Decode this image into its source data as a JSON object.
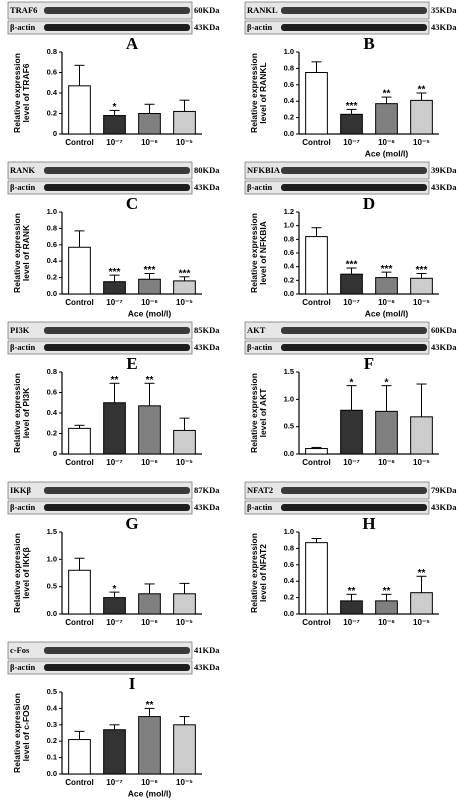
{
  "chart_data": [
    {
      "type": "bar",
      "panel": "A",
      "protein": "TRAF6",
      "protein_kda": "60KDa",
      "control_label": "β-actin",
      "control_kda": "43KDa",
      "ylabel": "Relative expression level of TRAF6",
      "categories": [
        "Control",
        "10⁻⁷",
        "10⁻⁶",
        "10⁻⁵"
      ],
      "values": [
        0.47,
        0.18,
        0.2,
        0.22
      ],
      "errors": [
        0.2,
        0.05,
        0.09,
        0.11
      ],
      "annotations": [
        null,
        "*",
        null,
        null
      ],
      "colors": [
        "#ffffff",
        "#333333",
        "#808080",
        "#cccccc"
      ],
      "ylim": [
        0,
        0.8
      ],
      "yticks": [
        0,
        0.2,
        0.4,
        0.6,
        0.8
      ]
    },
    {
      "type": "bar",
      "panel": "B",
      "protein": "RANKL",
      "protein_kda": "35KDa",
      "control_label": "β-actin",
      "control_kda": "43KDa",
      "ylabel": "Relative expression level of RANKL",
      "xlabel": "Ace (mol/l)",
      "categories": [
        "Control",
        "10⁻⁷",
        "10⁻⁶",
        "10⁻⁵"
      ],
      "values": [
        0.75,
        0.24,
        0.37,
        0.41
      ],
      "errors": [
        0.13,
        0.06,
        0.08,
        0.09
      ],
      "annotations": [
        null,
        "***",
        "**",
        "**"
      ],
      "colors": [
        "#ffffff",
        "#333333",
        "#808080",
        "#cccccc"
      ],
      "ylim": [
        0,
        1
      ],
      "yticks": [
        {
          "value": 0,
          "label": "0.0"
        },
        0.2,
        0.4,
        0.6,
        0.8,
        {
          "value": 1,
          "label": "1.0"
        }
      ]
    },
    {
      "type": "bar",
      "panel": "C",
      "protein": "RANK",
      "protein_kda": "80KDa",
      "control_label": "β-actin",
      "control_kda": "43KDa",
      "ylabel": "Relative expression level of RANK",
      "xlabel": "Ace (mol/l)",
      "categories": [
        "Control",
        "10⁻⁷",
        "10⁻⁶",
        "10⁻⁵"
      ],
      "values": [
        0.57,
        0.15,
        0.18,
        0.16
      ],
      "errors": [
        0.2,
        0.08,
        0.07,
        0.05
      ],
      "annotations": [
        null,
        "***",
        "***",
        "***"
      ],
      "colors": [
        "#ffffff",
        "#333333",
        "#808080",
        "#cccccc"
      ],
      "ylim": [
        0,
        1
      ],
      "yticks": [
        {
          "value": 0,
          "label": "0.0"
        },
        0.2,
        0.4,
        0.6,
        0.8,
        {
          "value": 1,
          "label": "1.0"
        }
      ]
    },
    {
      "type": "bar",
      "panel": "D",
      "protein": "NFKBIA",
      "protein_kda": "39KDa",
      "control_label": "β-actin",
      "control_kda": "43KDa",
      "ylabel": "Relative expression level of NFKBIA",
      "xlabel": "Ace (mol/l)",
      "categories": [
        "Control",
        "10⁻⁷",
        "10⁻⁶",
        "10⁻⁵"
      ],
      "values": [
        0.84,
        0.29,
        0.24,
        0.23
      ],
      "errors": [
        0.13,
        0.09,
        0.08,
        0.07
      ],
      "annotations": [
        null,
        "***",
        "***",
        "***"
      ],
      "colors": [
        "#ffffff",
        "#333333",
        "#808080",
        "#cccccc"
      ],
      "ylim": [
        0,
        1.2
      ],
      "yticks": [
        {
          "value": 0,
          "label": "0.0"
        },
        0.2,
        0.4,
        0.6,
        0.8,
        {
          "value": 1,
          "label": "1.0"
        },
        1.2
      ]
    },
    {
      "type": "bar",
      "panel": "E",
      "protein": "PI3K",
      "protein_kda": "85KDa",
      "control_label": "β-actin",
      "control_kda": "43KDa",
      "ylabel": "Relative expression level of PI3K",
      "categories": [
        "Control",
        "10⁻⁷",
        "10⁻⁶",
        "10⁻⁵"
      ],
      "values": [
        0.25,
        0.5,
        0.47,
        0.23
      ],
      "errors": [
        0.03,
        0.19,
        0.22,
        0.12
      ],
      "annotations": [
        null,
        "**",
        "**",
        null
      ],
      "colors": [
        "#ffffff",
        "#333333",
        "#808080",
        "#cccccc"
      ],
      "ylim": [
        0,
        0.8
      ],
      "yticks": [
        0,
        0.2,
        0.4,
        0.6,
        0.8
      ]
    },
    {
      "type": "bar",
      "panel": "F",
      "protein": "AKT",
      "protein_kda": "60KDa",
      "control_label": "β-actin",
      "control_kda": "43KDa",
      "ylabel": "Relative expression level of AKT",
      "categories": [
        "Control",
        "10⁻⁷",
        "10⁻⁶",
        "10⁻⁵"
      ],
      "values": [
        0.1,
        0.8,
        0.78,
        0.68
      ],
      "errors": [
        0.02,
        0.45,
        0.47,
        0.6
      ],
      "annotations": [
        null,
        "*",
        "*",
        null
      ],
      "colors": [
        "#ffffff",
        "#333333",
        "#808080",
        "#cccccc"
      ],
      "ylim": [
        0,
        1.5
      ],
      "yticks": [
        {
          "value": 0,
          "label": "0.0"
        },
        0.5,
        {
          "value": 1,
          "label": "1.0"
        },
        1.5
      ]
    },
    {
      "type": "bar",
      "panel": "G",
      "protein": "IKKβ",
      "protein_kda": "87KDa",
      "control_label": "β-actin",
      "control_kda": "43KDa",
      "ylabel": "Relative expression level of IKKβ",
      "categories": [
        "Control",
        "10⁻⁷",
        "10⁻⁶",
        "10⁻⁵"
      ],
      "values": [
        0.8,
        0.3,
        0.37,
        0.37
      ],
      "errors": [
        0.22,
        0.1,
        0.18,
        0.19
      ],
      "annotations": [
        null,
        "*",
        null,
        null
      ],
      "colors": [
        "#ffffff",
        "#333333",
        "#808080",
        "#cccccc"
      ],
      "ylim": [
        0,
        1.5
      ],
      "yticks": [
        {
          "value": 0,
          "label": "0.0"
        },
        0.5,
        {
          "value": 1,
          "label": "1.0"
        },
        1.5
      ]
    },
    {
      "type": "bar",
      "panel": "H",
      "protein": "NFAT2",
      "protein_kda": "79KDa",
      "control_label": "β-actin",
      "control_kda": "43KDa",
      "ylabel": "Relative expression level of NFAT2",
      "categories": [
        "Control",
        "10⁻⁷",
        "10⁻⁶",
        "10⁻⁵"
      ],
      "values": [
        0.87,
        0.16,
        0.16,
        0.26
      ],
      "errors": [
        0.05,
        0.08,
        0.08,
        0.2
      ],
      "annotations": [
        null,
        "**",
        "**",
        "**"
      ],
      "colors": [
        "#ffffff",
        "#333333",
        "#808080",
        "#cccccc"
      ],
      "ylim": [
        0,
        1
      ],
      "yticks": [
        {
          "value": 0,
          "label": "0.0"
        },
        0.2,
        0.4,
        0.6,
        0.8,
        {
          "value": 1,
          "label": "1.0"
        }
      ]
    },
    {
      "type": "bar",
      "panel": "I",
      "protein": "c-Fos",
      "protein_kda": "41KDa",
      "control_label": "β-actin",
      "control_kda": "43KDa",
      "ylabel": "Relative expression level of c-FOS",
      "xlabel": "Ace (mol/l)",
      "categories": [
        "Control",
        "10⁻⁷",
        "10⁻⁶",
        "10⁻⁵"
      ],
      "values": [
        0.21,
        0.27,
        0.35,
        0.3
      ],
      "errors": [
        0.05,
        0.03,
        0.05,
        0.05
      ],
      "annotations": [
        null,
        null,
        "**",
        null
      ],
      "colors": [
        "#ffffff",
        "#333333",
        "#808080",
        "#cccccc"
      ],
      "ylim": [
        0,
        0.5
      ],
      "yticks": [
        {
          "value": 0,
          "label": "0.0"
        },
        0.1,
        0.2,
        0.3,
        0.4,
        0.5
      ]
    }
  ]
}
